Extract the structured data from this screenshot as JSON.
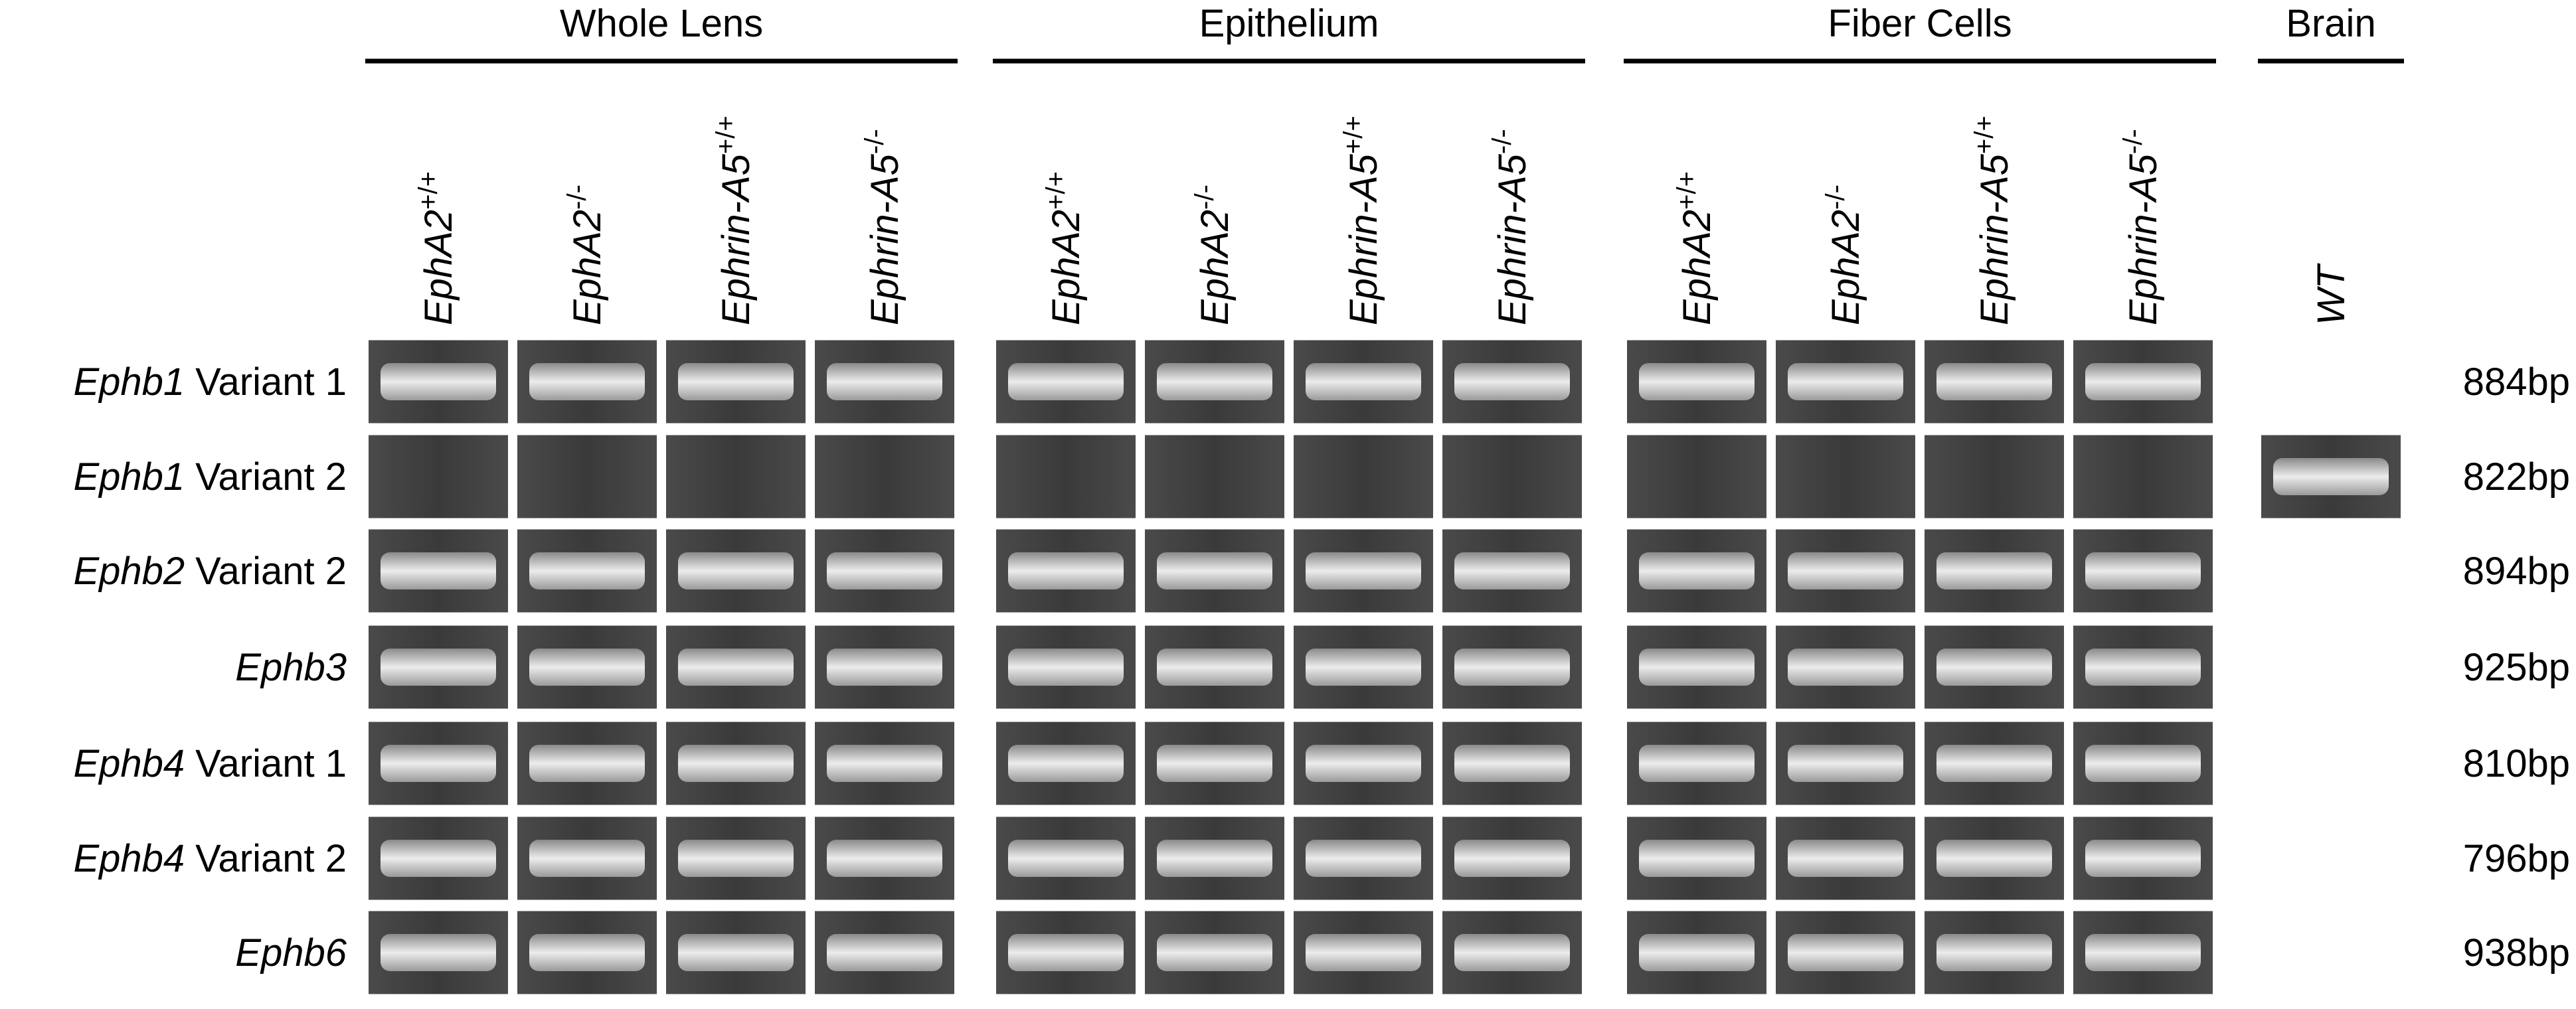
{
  "groups": [
    {
      "title": "Whole Lens",
      "columns": [
        {
          "name": "EphA2",
          "sup": "+/+"
        },
        {
          "name": "EphA2",
          "sup": "-/-"
        },
        {
          "name": "Ephrin-A5",
          "sup": "+/+"
        },
        {
          "name": "Ephrin-A5",
          "sup": "-/-"
        }
      ]
    },
    {
      "title": "Epithelium",
      "columns": [
        {
          "name": "EphA2",
          "sup": "+/+"
        },
        {
          "name": "EphA2",
          "sup": "-/-"
        },
        {
          "name": "Ephrin-A5",
          "sup": "+/+"
        },
        {
          "name": "Ephrin-A5",
          "sup": "-/-"
        }
      ]
    },
    {
      "title": "Fiber Cells",
      "columns": [
        {
          "name": "EphA2",
          "sup": "+/+"
        },
        {
          "name": "EphA2",
          "sup": "-/-"
        },
        {
          "name": "Ephrin-A5",
          "sup": "+/+"
        },
        {
          "name": "Ephrin-A5",
          "sup": "-/-"
        }
      ]
    },
    {
      "title": "Brain",
      "columns": [
        {
          "name": "WT"
        }
      ]
    }
  ],
  "rows": [
    {
      "gene": "Ephb1",
      "variant": "Variant 1",
      "size": "884bp"
    },
    {
      "gene": "Ephb1",
      "variant": "Variant 2",
      "size": "822bp"
    },
    {
      "gene": "Ephb2",
      "variant": "Variant 2",
      "size": "894bp"
    },
    {
      "gene": "Ephb3",
      "size": "925bp"
    },
    {
      "gene": "Ephb4",
      "variant": "Variant 1",
      "size": "810bp"
    },
    {
      "gene": "Ephb4",
      "variant": "Variant 2",
      "size": "796bp"
    },
    {
      "gene": "Ephb6",
      "size": "938bp"
    }
  ]
}
